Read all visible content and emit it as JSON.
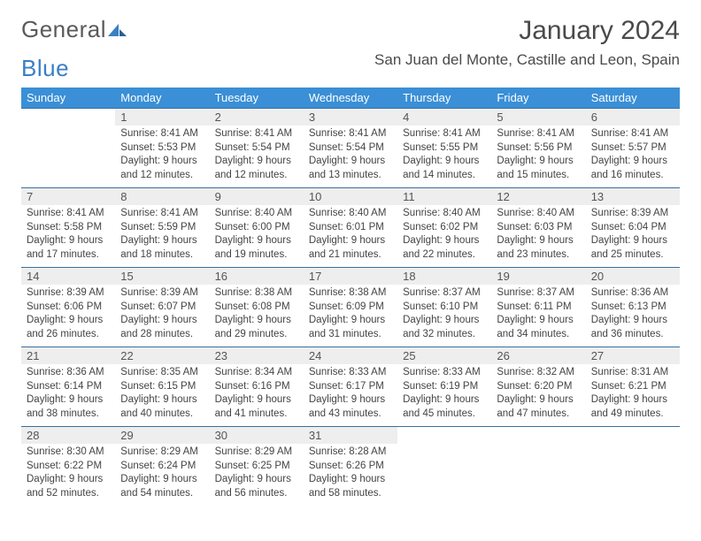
{
  "logo": {
    "word1": "General",
    "word2": "Blue"
  },
  "title": "January 2024",
  "location": "San Juan del Monte, Castille and Leon, Spain",
  "colors": {
    "header_bg": "#3a8fd6",
    "header_text": "#ffffff",
    "daynum_bg": "#eeeeee",
    "rule": "#3a6fa0",
    "logo_gray": "#5a5a5a",
    "logo_blue": "#3a7fc4",
    "body_text": "#444444"
  },
  "typography": {
    "month_title_pt": 30,
    "location_pt": 17,
    "dow_pt": 13,
    "daynum_pt": 13,
    "details_pt": 11.5,
    "font_family": "Arial"
  },
  "dow": [
    "Sunday",
    "Monday",
    "Tuesday",
    "Wednesday",
    "Thursday",
    "Friday",
    "Saturday"
  ],
  "weeks": [
    {
      "nums": [
        "",
        "1",
        "2",
        "3",
        "4",
        "5",
        "6"
      ],
      "cells": [
        "",
        "Sunrise: 8:41 AM\nSunset: 5:53 PM\nDaylight: 9 hours and 12 minutes.",
        "Sunrise: 8:41 AM\nSunset: 5:54 PM\nDaylight: 9 hours and 12 minutes.",
        "Sunrise: 8:41 AM\nSunset: 5:54 PM\nDaylight: 9 hours and 13 minutes.",
        "Sunrise: 8:41 AM\nSunset: 5:55 PM\nDaylight: 9 hours and 14 minutes.",
        "Sunrise: 8:41 AM\nSunset: 5:56 PM\nDaylight: 9 hours and 15 minutes.",
        "Sunrise: 8:41 AM\nSunset: 5:57 PM\nDaylight: 9 hours and 16 minutes."
      ]
    },
    {
      "nums": [
        "7",
        "8",
        "9",
        "10",
        "11",
        "12",
        "13"
      ],
      "cells": [
        "Sunrise: 8:41 AM\nSunset: 5:58 PM\nDaylight: 9 hours and 17 minutes.",
        "Sunrise: 8:41 AM\nSunset: 5:59 PM\nDaylight: 9 hours and 18 minutes.",
        "Sunrise: 8:40 AM\nSunset: 6:00 PM\nDaylight: 9 hours and 19 minutes.",
        "Sunrise: 8:40 AM\nSunset: 6:01 PM\nDaylight: 9 hours and 21 minutes.",
        "Sunrise: 8:40 AM\nSunset: 6:02 PM\nDaylight: 9 hours and 22 minutes.",
        "Sunrise: 8:40 AM\nSunset: 6:03 PM\nDaylight: 9 hours and 23 minutes.",
        "Sunrise: 8:39 AM\nSunset: 6:04 PM\nDaylight: 9 hours and 25 minutes."
      ]
    },
    {
      "nums": [
        "14",
        "15",
        "16",
        "17",
        "18",
        "19",
        "20"
      ],
      "cells": [
        "Sunrise: 8:39 AM\nSunset: 6:06 PM\nDaylight: 9 hours and 26 minutes.",
        "Sunrise: 8:39 AM\nSunset: 6:07 PM\nDaylight: 9 hours and 28 minutes.",
        "Sunrise: 8:38 AM\nSunset: 6:08 PM\nDaylight: 9 hours and 29 minutes.",
        "Sunrise: 8:38 AM\nSunset: 6:09 PM\nDaylight: 9 hours and 31 minutes.",
        "Sunrise: 8:37 AM\nSunset: 6:10 PM\nDaylight: 9 hours and 32 minutes.",
        "Sunrise: 8:37 AM\nSunset: 6:11 PM\nDaylight: 9 hours and 34 minutes.",
        "Sunrise: 8:36 AM\nSunset: 6:13 PM\nDaylight: 9 hours and 36 minutes."
      ]
    },
    {
      "nums": [
        "21",
        "22",
        "23",
        "24",
        "25",
        "26",
        "27"
      ],
      "cells": [
        "Sunrise: 8:36 AM\nSunset: 6:14 PM\nDaylight: 9 hours and 38 minutes.",
        "Sunrise: 8:35 AM\nSunset: 6:15 PM\nDaylight: 9 hours and 40 minutes.",
        "Sunrise: 8:34 AM\nSunset: 6:16 PM\nDaylight: 9 hours and 41 minutes.",
        "Sunrise: 8:33 AM\nSunset: 6:17 PM\nDaylight: 9 hours and 43 minutes.",
        "Sunrise: 8:33 AM\nSunset: 6:19 PM\nDaylight: 9 hours and 45 minutes.",
        "Sunrise: 8:32 AM\nSunset: 6:20 PM\nDaylight: 9 hours and 47 minutes.",
        "Sunrise: 8:31 AM\nSunset: 6:21 PM\nDaylight: 9 hours and 49 minutes."
      ]
    },
    {
      "nums": [
        "28",
        "29",
        "30",
        "31",
        "",
        "",
        ""
      ],
      "cells": [
        "Sunrise: 8:30 AM\nSunset: 6:22 PM\nDaylight: 9 hours and 52 minutes.",
        "Sunrise: 8:29 AM\nSunset: 6:24 PM\nDaylight: 9 hours and 54 minutes.",
        "Sunrise: 8:29 AM\nSunset: 6:25 PM\nDaylight: 9 hours and 56 minutes.",
        "Sunrise: 8:28 AM\nSunset: 6:26 PM\nDaylight: 9 hours and 58 minutes.",
        "",
        "",
        ""
      ]
    }
  ]
}
